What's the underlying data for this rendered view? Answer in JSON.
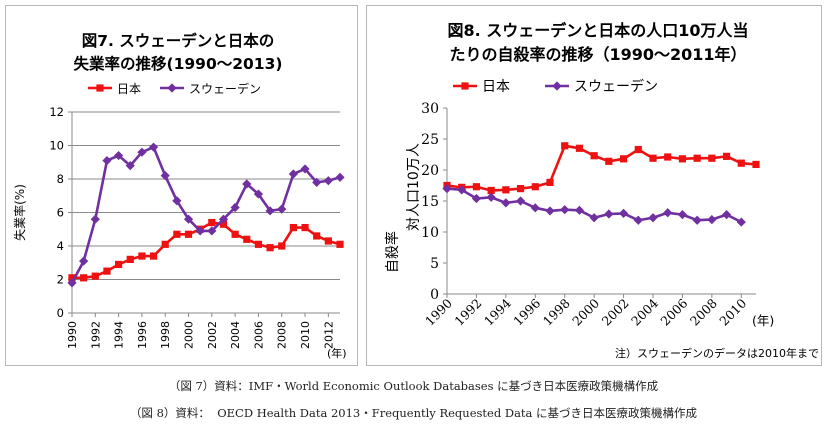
{
  "charts": [
    {
      "type": "line",
      "title_lines": [
        "図7. スウェーデンと日本の",
        "失業率の推移(1990～2013)"
      ],
      "ylabel": "失業率(%)",
      "xlabel": "",
      "x_unit": "(年)",
      "xlim": [
        1990,
        2013
      ],
      "ylim": [
        0,
        12
      ],
      "y_ticks": [
        0,
        2,
        4,
        6,
        8,
        10,
        12
      ],
      "x_ticks": [
        "1990",
        "1992",
        "1994",
        "1996",
        "1998",
        "2000",
        "2002",
        "2004",
        "2006",
        "2008",
        "2010",
        "2012"
      ],
      "grid": true,
      "legend": "top",
      "x": [
        1990,
        1991,
        1992,
        1993,
        1994,
        1995,
        1996,
        1997,
        1998,
        1999,
        2000,
        2001,
        2002,
        2003,
        2004,
        2005,
        2006,
        2007,
        2008,
        2009,
        2010,
        2011,
        2012,
        2013
      ],
      "series": [
        {
          "name": "日本",
          "color": "#ee1111",
          "marker": "square",
          "values": [
            2.1,
            2.1,
            2.2,
            2.5,
            2.9,
            3.2,
            3.4,
            3.4,
            4.1,
            4.7,
            4.7,
            5.0,
            5.4,
            5.3,
            4.7,
            4.4,
            4.1,
            3.9,
            4.0,
            5.1,
            5.1,
            4.6,
            4.3,
            4.1
          ]
        },
        {
          "name": "スウェーデン",
          "color": "#7030a0",
          "marker": "diamond",
          "values": [
            1.8,
            3.1,
            5.6,
            9.1,
            9.4,
            8.8,
            9.6,
            9.9,
            8.2,
            6.7,
            5.6,
            4.9,
            4.9,
            5.6,
            6.3,
            7.7,
            7.1,
            6.1,
            6.2,
            8.3,
            8.6,
            7.8,
            7.9,
            8.1
          ]
        }
      ]
    },
    {
      "type": "line",
      "title_lines": [
        "図8. スウェーデンと日本の人口10万人当",
        "たりの自殺率の推移（1990～2011年）"
      ],
      "ylabel_lines": [
        "自殺率",
        "対人口10万人"
      ],
      "xlabel": "",
      "x_unit": "(年)",
      "xlim": [
        1990,
        2011
      ],
      "ylim": [
        0,
        30
      ],
      "y_ticks": [
        0,
        5,
        10,
        15,
        20,
        25,
        30
      ],
      "x_ticks": [
        "1990",
        "1992",
        "1994",
        "1996",
        "1998",
        "2000",
        "2002",
        "2004",
        "2006",
        "2008",
        "2010"
      ],
      "grid": false,
      "legend": "top",
      "note": "注）スウェーデンのデータは2010年まで",
      "x": [
        1990,
        1991,
        1992,
        1993,
        1994,
        1995,
        1996,
        1997,
        1998,
        1999,
        2000,
        2001,
        2002,
        2003,
        2004,
        2005,
        2006,
        2007,
        2008,
        2009,
        2010,
        2011
      ],
      "series": [
        {
          "name": "日本",
          "color": "#ee1111",
          "marker": "square",
          "values": [
            17.5,
            17.2,
            17.3,
            16.7,
            16.8,
            17.0,
            17.3,
            18.0,
            23.9,
            23.5,
            22.3,
            21.4,
            21.8,
            23.3,
            21.9,
            22.1,
            21.8,
            21.9,
            21.9,
            22.2,
            21.1,
            20.9
          ]
        },
        {
          "name": "スウェーデン",
          "color": "#7030a0",
          "marker": "diamond",
          "values": [
            17.0,
            16.8,
            15.4,
            15.6,
            14.7,
            15.0,
            13.9,
            13.4,
            13.6,
            13.5,
            12.3,
            12.9,
            13.0,
            11.9,
            12.3,
            13.1,
            12.8,
            11.9,
            12.0,
            12.8,
            11.6,
            null
          ]
        }
      ]
    }
  ],
  "captions": [
    "（図 7）資料：IMF・World Economic Outlook Databases に基づき日本医療政策機構作成",
    "（図 8）資料：  OECD Health Data 2013・Frequently Requested Data に基づき日本医療政策機構作成"
  ]
}
